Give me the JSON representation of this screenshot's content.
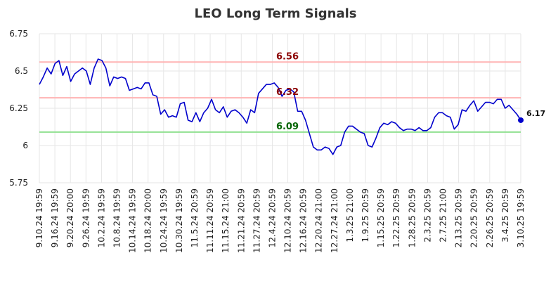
{
  "chart_data": {
    "type": "line",
    "title": "LEO Long Term Signals",
    "xlabel": "",
    "ylabel": "",
    "ylim": [
      5.75,
      6.75
    ],
    "y_ticks": [
      "5.75",
      "6",
      "6.25",
      "6.5",
      "6.75"
    ],
    "grid": true,
    "legend": "none",
    "x_tick_labels": [
      "9.10.24 19:59",
      "9.16.24 19:59",
      "9.20.24 20:00",
      "9.26.24 19:59",
      "10.2.24 19:59",
      "10.8.24 19:59",
      "10.14.24 19:59",
      "10.18.24 20:00",
      "10.24.24 19:59",
      "10.30.24 19:59",
      "11.5.24 20:59",
      "11.11.24 20:59",
      "11.15.24 21:00",
      "11.21.24 20:59",
      "11.27.24 20:59",
      "12.4.24 20:59",
      "12.10.24 20:59",
      "12.16.24 20:59",
      "12.20.24 21:00",
      "12.27.24 21:00",
      "1.3.25 21:00",
      "1.9.25 20:59",
      "1.15.25 20:59",
      "1.22.25 20:59",
      "1.28.25 20:59",
      "2.3.25 20:59",
      "2.7.25 21:00",
      "2.13.25 20:59",
      "2.20.25 20:59",
      "2.26.25 20:59",
      "3.4.25 20:59",
      "3.10.25 19:59"
    ],
    "series": [
      {
        "values": [
          6.41,
          6.46,
          6.52,
          6.48,
          6.55,
          6.57,
          6.47,
          6.53,
          6.43,
          6.48,
          6.5,
          6.52,
          6.5,
          6.41,
          6.52,
          6.58,
          6.57,
          6.52,
          6.4,
          6.46,
          6.45,
          6.46,
          6.45,
          6.37,
          6.38,
          6.39,
          6.38,
          6.42,
          6.42,
          6.34,
          6.33,
          6.21,
          6.24,
          6.19,
          6.2,
          6.19,
          6.28,
          6.29,
          6.17,
          6.16,
          6.22,
          6.16,
          6.22,
          6.25,
          6.31,
          6.24,
          6.22,
          6.26,
          6.19,
          6.23,
          6.24,
          6.22,
          6.19,
          6.15,
          6.24,
          6.22,
          6.35,
          6.38,
          6.41,
          6.41,
          6.42,
          6.39,
          6.33,
          6.37,
          6.38,
          6.36,
          6.23,
          6.23,
          6.17,
          6.08,
          5.99,
          5.97,
          5.97,
          5.99,
          5.98,
          5.94,
          5.99,
          6.0,
          6.09,
          6.13,
          6.13,
          6.11,
          6.09,
          6.08,
          6.0,
          5.99,
          6.05,
          6.12,
          6.15,
          6.14,
          6.16,
          6.15,
          6.12,
          6.1,
          6.11,
          6.11,
          6.1,
          6.12,
          6.1,
          6.1,
          6.12,
          6.19,
          6.22,
          6.22,
          6.2,
          6.19,
          6.11,
          6.14,
          6.24,
          6.23,
          6.27,
          6.3,
          6.23,
          6.26,
          6.29,
          6.29,
          6.28,
          6.31,
          6.31,
          6.25,
          6.27,
          6.24,
          6.21,
          6.17
        ],
        "color": "#0000cc",
        "last_label": "6.17"
      }
    ],
    "reference_lines": [
      {
        "value": 6.56,
        "label": "6.56",
        "line_color": "#ffb3b3",
        "text_color": "#8b0000"
      },
      {
        "value": 6.32,
        "label": "6.32",
        "line_color": "#ffb3b3",
        "text_color": "#8b0000"
      },
      {
        "value": 6.09,
        "label": "6.09",
        "line_color": "#90e090",
        "text_color": "#006400"
      }
    ]
  }
}
